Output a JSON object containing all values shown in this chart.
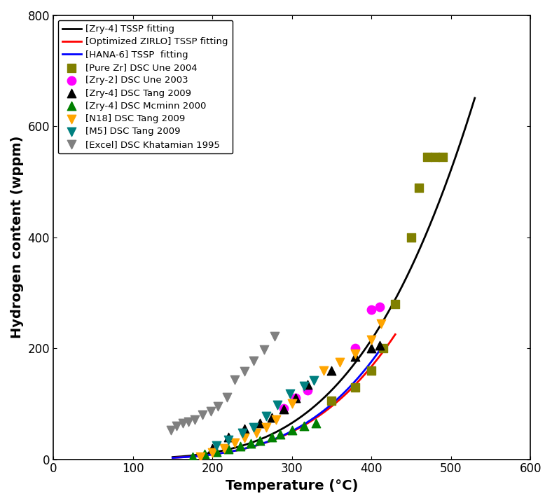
{
  "title": "",
  "xlabel": "Temperature (°C)",
  "ylabel": "Hydrogen content (wppm)",
  "xlim": [
    0,
    600
  ],
  "ylim": [
    0,
    800
  ],
  "xticks": [
    0,
    100,
    200,
    300,
    400,
    500,
    600
  ],
  "yticks": [
    0,
    200,
    400,
    600,
    800
  ],
  "curves": {
    "Zry4": {
      "label": "[Zry-4] TSSP fitting",
      "color": "#000000",
      "A": 106000,
      "B": 4145,
      "T_start": 150,
      "T_end": 530
    },
    "OptZIRLO": {
      "label": "[Optimized ZIRLO] TSSP fitting",
      "color": "#FF0000",
      "A": 106000,
      "B": 4145,
      "T_start": 150,
      "T_end": 430
    },
    "HANA6": {
      "label": "[HANA-6] TSSP  fitting",
      "color": "#0000FF",
      "A": 106000,
      "B": 4145,
      "T_start": 150,
      "T_end": 415
    }
  },
  "scatter_data": {
    "PureZr_Une2004": {
      "label": "[Pure Zr] DSC Une 2004",
      "marker": "s",
      "color": "#808000",
      "x": [
        350,
        380,
        400,
        420,
        440,
        450,
        460,
        470,
        480,
        490,
        500
      ],
      "y": [
        100,
        130,
        160,
        200,
        280,
        330,
        400,
        490,
        540,
        545,
        545
      ]
    },
    "Zry2_Une2003": {
      "label": "[Zry-2] DSC Une 2003",
      "marker": "o",
      "color": "#FF00FF",
      "x": [
        290,
        300,
        320,
        380,
        400,
        410
      ],
      "y": [
        90,
        110,
        125,
        200,
        270,
        275
      ]
    },
    "Zry4_Tang2009": {
      "label": "[Zry-4] DSC Tang 2009",
      "marker": "^",
      "color": "#000000",
      "x": [
        200,
        220,
        240,
        260,
        270,
        280,
        300,
        320,
        350,
        380,
        400,
        410
      ],
      "y": [
        20,
        40,
        55,
        65,
        75,
        90,
        110,
        135,
        160,
        185,
        200,
        205
      ]
    },
    "Zry4_Mcminn2000": {
      "label": "[Zry-4] DSC Mcminn 2000",
      "marker": "^",
      "color": "#008000",
      "x": [
        175,
        190,
        200,
        215,
        230,
        240,
        250,
        260,
        270,
        280,
        295,
        310,
        330
      ],
      "y": [
        5,
        10,
        12,
        18,
        22,
        28,
        32,
        38,
        42,
        48,
        55,
        65,
        65
      ]
    },
    "N18_Tang2009": {
      "label": "[N18] DSC Tang 2009",
      "marker": "v",
      "color": "#FFA500",
      "x": [
        185,
        200,
        210,
        220,
        230,
        240,
        250,
        260,
        270,
        280,
        300,
        340,
        360,
        380,
        400,
        410
      ],
      "y": [
        5,
        10,
        18,
        25,
        30,
        38,
        45,
        60,
        65,
        75,
        100,
        160,
        175,
        190,
        215,
        240
      ]
    },
    "M5_Tang2009": {
      "label": "[M5] DSC Tang 2009",
      "marker": "v",
      "color": "#008080",
      "x": [
        200,
        215,
        230,
        245,
        260,
        275,
        295,
        310,
        325
      ],
      "y": [
        25,
        35,
        45,
        55,
        75,
        95,
        115,
        130,
        140
      ]
    },
    "Excel_Khatamian1995": {
      "label": "[Excel] DSC Khatamian 1995",
      "marker": "v",
      "color": "#808080",
      "x": [
        148,
        155,
        160,
        168,
        175,
        182,
        190,
        198,
        205,
        215,
        225,
        235,
        248,
        260,
        270,
        280
      ],
      "y": [
        52,
        58,
        65,
        65,
        68,
        72,
        80,
        85,
        92,
        110,
        140,
        155,
        175,
        195,
        210,
        225
      ]
    }
  },
  "figsize": [
    7.88,
    7.18
  ],
  "dpi": 100
}
